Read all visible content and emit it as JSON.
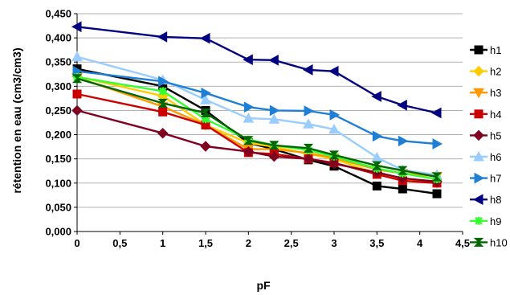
{
  "chart_data": {
    "type": "line",
    "title": "",
    "xlabel": "pF",
    "ylabel": "rétention en eau (cm3/cm3)",
    "xlim": [
      0,
      4.5
    ],
    "ylim": [
      0,
      0.45
    ],
    "x_ticks": [
      "0",
      "0,5",
      "1",
      "1,5",
      "2",
      "2,5",
      "3",
      "3,5",
      "4",
      "4,5"
    ],
    "y_ticks": [
      "0,000",
      "0,050",
      "0,100",
      "0,150",
      "0,200",
      "0,250",
      "0,300",
      "0,350",
      "0,400",
      "0,450"
    ],
    "grid": "horizontal",
    "legend_position": "right",
    "x": [
      0,
      1,
      1.5,
      2,
      2.3,
      2.7,
      3,
      3.5,
      3.8,
      4.2
    ],
    "series": [
      {
        "name": "h1",
        "color": "#000000",
        "marker": "square",
        "values": [
          0.336,
          0.3,
          0.25,
          0.183,
          0.17,
          0.148,
          0.135,
          0.094,
          0.088,
          0.078
        ]
      },
      {
        "name": "h2",
        "color": "#ffcc00",
        "marker": "diamond",
        "values": [
          0.32,
          0.28,
          0.22,
          0.183,
          0.175,
          0.16,
          0.15,
          0.12,
          0.11,
          0.1
        ]
      },
      {
        "name": "h3",
        "color": "#ff9900",
        "marker": "triangle-down",
        "values": [
          0.318,
          0.258,
          0.22,
          0.17,
          0.17,
          0.162,
          0.152,
          0.128,
          0.12,
          0.114
        ]
      },
      {
        "name": "h4",
        "color": "#cc0000",
        "marker": "square",
        "values": [
          0.284,
          0.247,
          0.22,
          0.163,
          0.16,
          0.15,
          0.142,
          0.118,
          0.105,
          0.1
        ]
      },
      {
        "name": "h5",
        "color": "#800020",
        "marker": "diamond",
        "values": [
          0.25,
          0.203,
          0.176,
          0.165,
          0.155,
          0.15,
          0.14,
          0.122,
          0.11,
          0.103
        ]
      },
      {
        "name": "h6",
        "color": "#99ccff",
        "marker": "triangle-up",
        "values": [
          0.361,
          0.313,
          0.272,
          0.234,
          0.232,
          0.222,
          0.211,
          0.153,
          0.127,
          0.117
        ]
      },
      {
        "name": "h7",
        "color": "#1f7fd4",
        "marker": "triangle-right",
        "values": [
          0.331,
          0.31,
          0.286,
          0.257,
          0.25,
          0.249,
          0.241,
          0.197,
          0.187,
          0.181
        ]
      },
      {
        "name": "h8",
        "color": "#000080",
        "marker": "triangle-left",
        "values": [
          0.423,
          0.402,
          0.399,
          0.355,
          0.354,
          0.334,
          0.331,
          0.279,
          0.261,
          0.245
        ]
      },
      {
        "name": "h9",
        "color": "#33ff33",
        "marker": "star",
        "values": [
          0.319,
          0.29,
          0.232,
          0.19,
          0.178,
          0.168,
          0.155,
          0.13,
          0.12,
          0.108
        ]
      },
      {
        "name": "h10",
        "color": "#006600",
        "marker": "bowtie",
        "values": [
          0.316,
          0.265,
          0.245,
          0.188,
          0.178,
          0.172,
          0.158,
          0.136,
          0.126,
          0.113
        ]
      }
    ]
  }
}
